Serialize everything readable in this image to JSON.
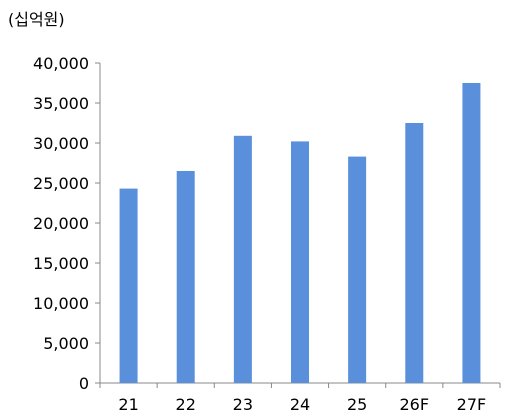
{
  "chart_data": {
    "type": "bar",
    "unit_label": "(십억원)",
    "categories": [
      "21",
      "22",
      "23",
      "24",
      "25",
      "26F",
      "27F"
    ],
    "series": [
      {
        "values": [
          24300,
          26500,
          30900,
          30200,
          28300,
          32500,
          37500
        ]
      }
    ],
    "yticks": [
      "0",
      "5,000",
      "10,000",
      "15,000",
      "20,000",
      "25,000",
      "30,000",
      "35,000",
      "40,000"
    ],
    "ylim": [
      0,
      40000
    ],
    "bar_color": "#5a8fdb",
    "grid": false,
    "legend": "none"
  }
}
